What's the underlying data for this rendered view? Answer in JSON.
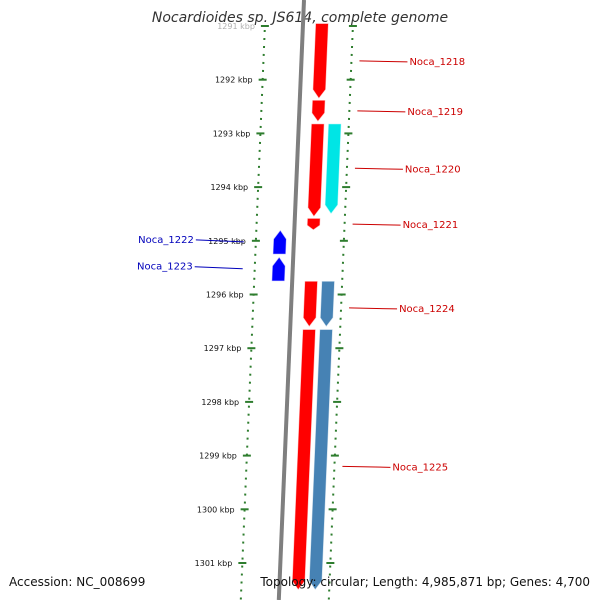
{
  "title": "Nocardioides sp. JS614, complete genome",
  "footer": {
    "accession": "Accession: NC_008699",
    "topology": "Topology: circular; Length: 4,985,871 bp; Genes: 4,700"
  },
  "colors": {
    "backbone": "#7f7f7f",
    "tick": "#2e7d2e",
    "forward_cds": "#ff0000",
    "reverse_cds": "#0000ff",
    "forward_other": "#00e5e5",
    "forward_alt": "#4682b4",
    "label_forward": "#cc0000",
    "label_reverse": "#0000bb"
  },
  "ruler": {
    "labels": [
      "1291 kbp",
      "1292 kbp",
      "1293 kbp",
      "1294 kbp",
      "1295 kbp",
      "1296 kbp",
      "1297 kbp",
      "1298 kbp",
      "1299 kbp",
      "1300 kbp",
      "1301 kbp"
    ]
  },
  "genes": [
    {
      "name": "Noca_1218",
      "strand": "+",
      "start_kbp": 1290.95,
      "end_kbp": 1292.35,
      "color": "#ff0000"
    },
    {
      "name": "Noca_1219",
      "strand": "+",
      "start_kbp": 1292.38,
      "end_kbp": 1292.78,
      "color": "#ff0000"
    },
    {
      "name": "Noca_1220",
      "strand": "+",
      "start_kbp": 1292.82,
      "end_kbp": 1294.55,
      "color": "#ff0000"
    },
    {
      "name": "Noca_1220b",
      "strand": "+",
      "start_kbp": 1292.82,
      "end_kbp": 1294.5,
      "color": "#00e5e5",
      "lane": 2
    },
    {
      "name": "Noca_1221",
      "strand": "+",
      "start_kbp": 1294.58,
      "end_kbp": 1294.8,
      "color": "#ff0000"
    },
    {
      "name": "Noca_1222",
      "strand": "-",
      "start_kbp": 1294.8,
      "end_kbp": 1295.25,
      "color": "#0000ff"
    },
    {
      "name": "Noca_1223",
      "strand": "-",
      "start_kbp": 1295.3,
      "end_kbp": 1295.75,
      "color": "#0000ff"
    },
    {
      "name": "Noca_1224",
      "strand": "+",
      "start_kbp": 1295.75,
      "end_kbp": 1296.6,
      "color": "#ff0000"
    },
    {
      "name": "Noca_1224b",
      "strand": "+",
      "start_kbp": 1295.75,
      "end_kbp": 1296.6,
      "color": "#4682b4",
      "lane": 2
    },
    {
      "name": "Noca_1225",
      "strand": "+",
      "start_kbp": 1296.65,
      "end_kbp": 1301.5,
      "color": "#ff0000"
    },
    {
      "name": "Noca_1225b",
      "strand": "+",
      "start_kbp": 1296.65,
      "end_kbp": 1301.5,
      "color": "#4682b4",
      "lane": 2
    }
  ],
  "labels": [
    {
      "text": "Noca_1218",
      "side": "right",
      "at_kbp": 1291.65
    },
    {
      "text": "Noca_1219",
      "side": "right",
      "at_kbp": 1292.58
    },
    {
      "text": "Noca_1220",
      "side": "right",
      "at_kbp": 1293.65
    },
    {
      "text": "Noca_1221",
      "side": "right",
      "at_kbp": 1294.69
    },
    {
      "text": "Noca_1224",
      "side": "right",
      "at_kbp": 1296.25
    },
    {
      "text": "Noca_1225",
      "side": "right",
      "at_kbp": 1299.2
    },
    {
      "text": "Noca_1222",
      "side": "left",
      "at_kbp": 1295.02
    },
    {
      "text": "Noca_1223",
      "side": "left",
      "at_kbp": 1295.52
    }
  ]
}
